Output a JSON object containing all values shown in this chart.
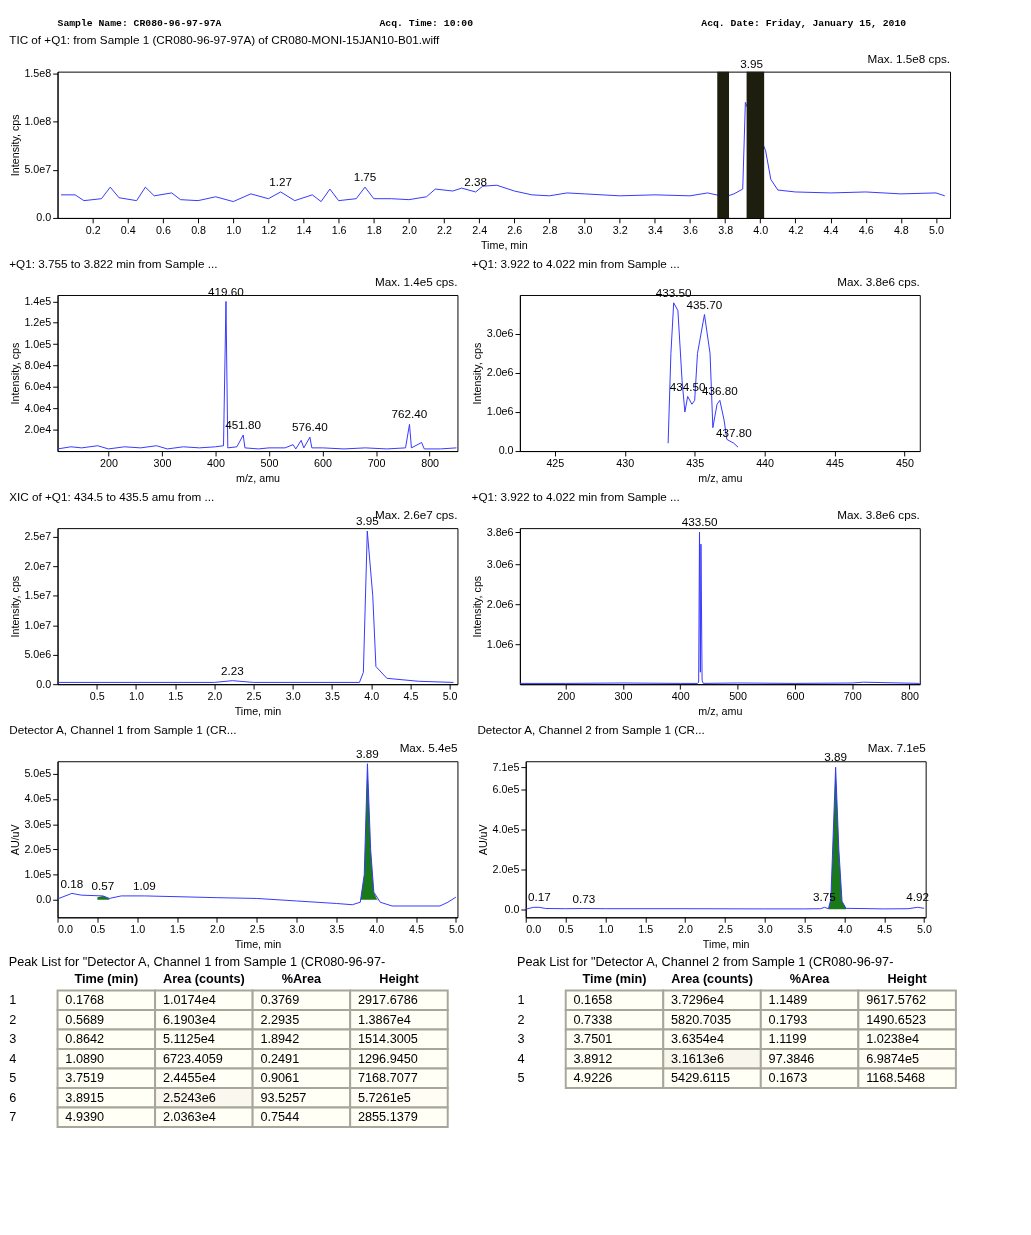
{
  "chart_data": [
    {
      "type": "other",
      "annotations": [
        "Sample Name: CR080-96-97-97A",
        "Acq. Time: 10:00",
        "Acq. Date: Friday, January 15, 2010"
      ]
    },
    {
      "type": "line",
      "title": "TIC of +Q1: from Sample 1 (CR080-96-97-97A) of CR080-MONI-15JAN10-B01.wiff",
      "xlabel": "Time, min",
      "ylabel": "Intensity, cps",
      "xlim": [
        0,
        5.08
      ],
      "ylim": [
        0,
        152000000
      ],
      "xticks": [
        0.2,
        0.4,
        0.6,
        0.8,
        {
          "value": 1,
          "label": "1.0"
        },
        1.2,
        1.4,
        1.6,
        1.8,
        {
          "value": 2,
          "label": "2.0"
        },
        2.2,
        2.4,
        2.6,
        2.8,
        {
          "value": 3,
          "label": "3.0"
        },
        3.2,
        3.4,
        3.6,
        3.8,
        {
          "value": 4,
          "label": "4.0"
        },
        4.2,
        4.4,
        4.6,
        4.8,
        {
          "value": 5,
          "label": "5.0"
        }
      ],
      "yticks": [
        {
          "value": 0,
          "label": "0.0"
        },
        {
          "value": 50000000,
          "label": "5.0e7"
        },
        {
          "value": 100000000,
          "label": "1.0e8"
        },
        {
          "value": 150000000,
          "label": "1.5e8"
        }
      ],
      "series": [
        {
          "color": "#3333ff",
          "x": [
            0.02,
            0.1,
            0.15,
            0.25,
            0.3,
            0.35,
            0.45,
            0.5,
            0.55,
            0.65,
            0.7,
            0.8,
            0.9,
            1.0,
            1.1,
            1.2,
            1.27,
            1.35,
            1.45,
            1.5,
            1.55,
            1.6,
            1.7,
            1.75,
            1.8,
            1.9,
            2.0,
            2.1,
            2.15,
            2.25,
            2.3,
            2.38,
            2.42,
            2.5,
            2.6,
            2.7,
            2.8,
            2.9,
            3.0,
            3.2,
            3.4,
            3.6,
            3.7,
            3.8,
            3.85,
            3.9,
            3.915,
            4.03,
            4.06,
            4.1,
            4.2,
            4.4,
            4.6,
            4.8,
            5.0,
            5.05
          ],
          "values": [
            24000000,
            24000000,
            18000000,
            20000000,
            32000000,
            21000000,
            18000000,
            32000000,
            23000000,
            26000000,
            19000000,
            18000000,
            22000000,
            17000000,
            25000000,
            20000000,
            27000000,
            18000000,
            24000000,
            17000000,
            30000000,
            18000000,
            20000000,
            32000000,
            20000000,
            20000000,
            19000000,
            22000000,
            30000000,
            28000000,
            31000000,
            27000000,
            33000000,
            34000000,
            28000000,
            24000000,
            23000000,
            26000000,
            25000000,
            23000000,
            24000000,
            23000000,
            26000000,
            22000000,
            25000000,
            30000000,
            120000000,
            70000000,
            40000000,
            29000000,
            27000000,
            26000000,
            27000000,
            25000000,
            26000000,
            23000000
          ]
        }
      ],
      "bands": [
        {
          "axis": "x",
          "from": 3.755,
          "to": 3.822,
          "color": "#1e1e0f"
        },
        {
          "axis": "x",
          "from": 3.922,
          "to": 4.022,
          "color": "#1e1e0f"
        }
      ],
      "annotations": [
        "Max. 1.5e8 cps.",
        {
          "text": "1.27",
          "x": 1.27,
          "y": 27000000
        },
        {
          "text": "1.75",
          "x": 1.75,
          "y": 32000000
        },
        {
          "text": "2.38",
          "x": 2.38,
          "y": 27000000
        },
        {
          "text": "3.95",
          "x": 3.95,
          "y": 150000000
        }
      ]
    },
    {
      "type": "line",
      "title": "+Q1: 3.755 to 3.822 min from Sample ...",
      "xlabel": "m/z, amu",
      "ylabel": "Intensity, cps",
      "xlim": [
        105,
        852
      ],
      "ylim": [
        0,
        146000
      ],
      "xticks": [
        200,
        300,
        400,
        500,
        600,
        700,
        800
      ],
      "yticks": [
        {
          "value": 20000,
          "label": "2.0e4"
        },
        {
          "value": 40000,
          "label": "4.0e4"
        },
        {
          "value": 60000,
          "label": "6.0e4"
        },
        {
          "value": 80000,
          "label": "8.0e4"
        },
        {
          "value": 100000,
          "label": "1.0e5"
        },
        {
          "value": 120000,
          "label": "1.2e5"
        },
        {
          "value": 140000,
          "label": "1.4e5"
        }
      ],
      "series": [
        {
          "color": "#3333ff",
          "x": [
            105,
            130,
            150,
            180,
            200,
            230,
            260,
            290,
            310,
            340,
            370,
            400,
            415,
            419.6,
            423,
            440,
            451.8,
            455,
            480,
            500,
            530,
            545,
            550,
            560,
            565,
            576.4,
            580,
            600,
            640,
            680,
            720,
            755,
            762.4,
            766,
            785,
            790,
            820,
            850
          ],
          "values": [
            2000,
            4000,
            3000,
            5000,
            2000,
            4000,
            3000,
            5000,
            2000,
            4000,
            3000,
            4000,
            5000,
            140000,
            3000,
            4000,
            15000,
            3000,
            2000,
            3000,
            3000,
            6000,
            2000,
            10000,
            3000,
            13000,
            3000,
            3000,
            2000,
            3000,
            2000,
            3000,
            25000,
            3000,
            8000,
            2000,
            2000,
            3000
          ]
        }
      ],
      "annotations": [
        "Max. 1.4e5 cps.",
        {
          "text": "419.60",
          "x": 419.6,
          "y": 140000
        },
        {
          "text": "451.80",
          "x": 451.8,
          "y": 15000
        },
        {
          "text": "576.40",
          "x": 576.4,
          "y": 13000
        },
        {
          "text": "762.40",
          "x": 762.4,
          "y": 25000
        }
      ]
    },
    {
      "type": "line",
      "title": "+Q1: 3.922 to 4.022 min from Sample ...",
      "xlabel": "m/z, amu",
      "ylabel": "Intensity, cps",
      "xlim": [
        422.5,
        451.1
      ],
      "ylim": [
        0,
        4000000
      ],
      "xticks": [
        425,
        430,
        435,
        440,
        445,
        450
      ],
      "yticks": [
        {
          "value": 0,
          "label": "0.0"
        },
        {
          "value": 1000000,
          "label": "1.0e6"
        },
        {
          "value": 2000000,
          "label": "2.0e6"
        },
        {
          "value": 3000000,
          "label": "3.0e6"
        }
      ],
      "series": [
        {
          "color": "#3333ff",
          "x": [
            433.1,
            433.3,
            433.5,
            433.8,
            434.1,
            434.3,
            434.5,
            434.8,
            435.0,
            435.2,
            435.7,
            436.1,
            436.3,
            436.6,
            436.8,
            437.1,
            437.3,
            437.8,
            438.1
          ],
          "values": [
            200000,
            2500000,
            3800000,
            3600000,
            1800000,
            1000000,
            1400000,
            1200000,
            1300000,
            2500000,
            3500000,
            2500000,
            600000,
            1200000,
            1300000,
            800000,
            300000,
            200000,
            100000
          ]
        }
      ],
      "annotations": [
        "Max. 3.8e6 cps.",
        {
          "text": "433.50",
          "x": 433.5,
          "y": 3800000
        },
        {
          "text": "435.70",
          "x": 435.7,
          "y": 3500000
        },
        {
          "text": "434.50",
          "x": 434.5,
          "y": 1400000
        },
        {
          "text": "436.80",
          "x": 436.8,
          "y": 1300000
        },
        {
          "text": "437.80",
          "x": 437.8,
          "y": 200000
        }
      ]
    },
    {
      "type": "line",
      "title": "XIC of +Q1: 434.5 to 435.5 amu from ...",
      "xlabel": "Time, min",
      "ylabel": "Intensity, cps",
      "xlim": [
        0,
        5.1
      ],
      "ylim": [
        0,
        26500000
      ],
      "xticks": [
        0.5,
        {
          "value": 1,
          "label": "1.0"
        },
        1.5,
        {
          "value": 2,
          "label": "2.0"
        },
        2.5,
        {
          "value": 3,
          "label": "3.0"
        },
        3.5,
        {
          "value": 4,
          "label": "4.0"
        },
        4.5,
        {
          "value": 5,
          "label": "5.0"
        }
      ],
      "yticks": [
        {
          "value": 0,
          "label": "0.0"
        },
        {
          "value": 5000000,
          "label": "5.0e6"
        },
        {
          "value": 10000000,
          "label": "1.0e7"
        },
        {
          "value": 15000000,
          "label": "1.5e7"
        },
        {
          "value": 20000000,
          "label": "2.0e7"
        },
        {
          "value": 25000000,
          "label": "2.5e7"
        }
      ],
      "series": [
        {
          "color": "#3333ff",
          "x": [
            0,
            1.0,
            2.0,
            2.23,
            2.5,
            3.5,
            3.85,
            3.9,
            3.95,
            4.02,
            4.06,
            4.2,
            4.6,
            5.05
          ],
          "values": [
            300000,
            300000,
            300000,
            600000,
            300000,
            300000,
            300000,
            2000000,
            26000000,
            15000000,
            3000000,
            1000000,
            500000,
            300000
          ]
        }
      ],
      "annotations": [
        "Max. 2.6e7 cps.",
        {
          "text": "3.95",
          "x": 3.95,
          "y": 26000000
        },
        {
          "text": "2.23",
          "x": 2.23,
          "y": 600000
        }
      ]
    },
    {
      "type": "line",
      "title": "+Q1: 3.922 to 4.022 min from Sample ...",
      "xlabel": "m/z, amu",
      "ylabel": "Intensity, cps",
      "xlim": [
        120,
        818
      ],
      "ylim": [
        0,
        3900000
      ],
      "xticks": [
        200,
        300,
        400,
        500,
        600,
        700,
        800
      ],
      "yticks": [
        {
          "value": 1000000,
          "label": "1.0e6"
        },
        {
          "value": 2000000,
          "label": "2.0e6"
        },
        {
          "value": 3000000,
          "label": "3.0e6"
        },
        {
          "value": 3800000,
          "label": "3.8e6"
        }
      ],
      "series": [
        {
          "color": "#3333ff",
          "x": [
            120,
            200,
            300,
            400,
            430,
            432,
            433.5,
            435,
            436,
            438,
            440,
            500,
            600,
            700,
            720,
            818
          ],
          "values": [
            20000,
            20000,
            30000,
            20000,
            20000,
            50000,
            3800000,
            300000,
            3500000,
            100000,
            20000,
            30000,
            20000,
            30000,
            50000,
            20000
          ]
        }
      ],
      "annotations": [
        "Max. 3.8e6 cps.",
        {
          "text": "433.50",
          "x": 433.5,
          "y": 3800000
        }
      ]
    },
    {
      "type": "line",
      "title": "Detector A, Channel 1 from Sample 1 (CR...",
      "xlabel": "Time, min",
      "ylabel": "AU/uV",
      "xlim": [
        0,
        5.02
      ],
      "ylim": [
        -70000,
        550000
      ],
      "xticks": [
        {
          "value": 0,
          "label": "0.0"
        },
        0.5,
        {
          "value": 1,
          "label": "1.0"
        },
        1.5,
        {
          "value": 2,
          "label": "2.0"
        },
        2.5,
        {
          "value": 3,
          "label": "3.0"
        },
        3.5,
        {
          "value": 4,
          "label": "4.0"
        },
        4.5,
        {
          "value": 5,
          "label": "5.0"
        }
      ],
      "yticks": [
        {
          "value": 0,
          "label": "0.0"
        },
        {
          "value": 100000,
          "label": "1.0e5"
        },
        {
          "value": 200000,
          "label": "2.0e5"
        },
        {
          "value": 300000,
          "label": "3.0e5"
        },
        {
          "value": 400000,
          "label": "4.0e5"
        },
        {
          "value": 500000,
          "label": "5.0e5"
        }
      ],
      "series": [
        {
          "type": "area",
          "color": "#1a7a1a",
          "x": [
            0.5,
            0.57,
            0.65
          ],
          "values": [
            10000,
            15000,
            5000
          ]
        },
        {
          "type": "area",
          "color": "#1a7a1a",
          "x": [
            3.8,
            3.85,
            3.89,
            3.93,
            3.97,
            4.02
          ],
          "values": [
            -10000,
            100000,
            540000,
            200000,
            30000,
            -5000
          ]
        },
        {
          "color": "#3333ff",
          "x": [
            0,
            0.18,
            0.3,
            0.57,
            0.65,
            0.8,
            1.09,
            1.5,
            2.0,
            2.5,
            3.0,
            3.5,
            3.7,
            3.8,
            3.85,
            3.89,
            3.93,
            3.97,
            4.05,
            4.2,
            4.8,
            4.9,
            5.0
          ],
          "values": [
            3000,
            25000,
            18000,
            15000,
            5000,
            15000,
            15000,
            12000,
            8000,
            5000,
            -5000,
            -15000,
            -20000,
            -10000,
            100000,
            540000,
            200000,
            30000,
            -10000,
            -25000,
            -25000,
            -10000,
            10000
          ]
        }
      ],
      "annotations": [
        "Max. 5.4e5",
        {
          "text": "3.89",
          "x": 3.89,
          "y": 540000
        },
        {
          "text": "0.18",
          "x": 0.18,
          "y": 25000
        },
        {
          "text": "0.57",
          "x": 0.57,
          "y": 15000
        },
        {
          "text": "1.09",
          "x": 1.09,
          "y": 15000
        }
      ]
    },
    {
      "type": "line",
      "title": "Detector A, Channel 2 from Sample 1 (CR...",
      "xlabel": "Time, min",
      "ylabel": "AU/uV",
      "xlim": [
        0,
        5.02
      ],
      "ylim": [
        -40000,
        740000
      ],
      "xticks": [
        {
          "value": 0,
          "label": "0.0"
        },
        0.5,
        {
          "value": 1,
          "label": "1.0"
        },
        1.5,
        {
          "value": 2,
          "label": "2.0"
        },
        2.5,
        {
          "value": 3,
          "label": "3.0"
        },
        3.5,
        {
          "value": 4,
          "label": "4.0"
        },
        4.5,
        {
          "value": 5,
          "label": "5.0"
        }
      ],
      "yticks": [
        {
          "value": 0,
          "label": "0.0"
        },
        {
          "value": 200000,
          "label": "2.0e5"
        },
        {
          "value": 400000,
          "label": "4.0e5"
        },
        {
          "value": 600000,
          "label": "6.0e5"
        },
        {
          "value": 710000,
          "label": "7.1e5"
        }
      ],
      "series": [
        {
          "type": "area",
          "color": "#1a7a1a",
          "x": [
            3.8,
            3.83,
            3.89,
            3.93,
            3.97,
            4.02
          ],
          "values": [
            3000,
            50000,
            710000,
            300000,
            40000,
            5000
          ]
        },
        {
          "color": "#3333ff",
          "x": [
            0,
            0.1,
            0.17,
            0.25,
            0.5,
            0.73,
            1.0,
            2.0,
            3.0,
            3.5,
            3.7,
            3.75,
            3.8,
            3.83,
            3.89,
            3.93,
            3.97,
            4.02,
            4.5,
            4.8,
            4.92,
            5.0
          ],
          "values": [
            1000,
            10000,
            10000,
            4000,
            3000,
            4000,
            3000,
            3000,
            2000,
            2000,
            3000,
            10000,
            3000,
            50000,
            710000,
            300000,
            40000,
            5000,
            2000,
            3000,
            10000,
            5000
          ]
        }
      ],
      "annotations": [
        "Max. 7.1e5",
        {
          "text": "3.89",
          "x": 3.89,
          "y": 710000
        },
        {
          "text": "0.17",
          "x": 0.17,
          "y": 10000
        },
        {
          "text": "0.73",
          "x": 0.73,
          "y": 4000
        },
        {
          "text": "3.75",
          "x": 3.75,
          "y": 10000
        },
        {
          "text": "4.92",
          "x": 4.92,
          "y": 10000
        }
      ]
    },
    {
      "type": "heatmap",
      "title": "Peak List for \"Detector A, Channel 1 from Sample 1 (CR080-96-97-",
      "categories": [
        "Time (min)",
        "Area (counts)",
        "%Area",
        "Height"
      ],
      "y_categories": [
        "1",
        "2",
        "3",
        "4",
        "5",
        "6",
        "7"
      ],
      "cells": [
        [
          0.1768,
          10174,
          0.3769,
          2917.6786
        ],
        [
          0.5689,
          61903,
          2.2935,
          13867
        ],
        [
          0.8642,
          51125,
          1.8942,
          1514.3005
        ],
        [
          1.089,
          6723.4059,
          0.2491,
          1296.945
        ],
        [
          3.7519,
          24455,
          0.9061,
          7168.7077
        ],
        [
          3.8915,
          2524300,
          93.5257,
          572610
        ],
        [
          4.939,
          20363,
          0.7544,
          2855.1379
        ]
      ],
      "cell_labels": [
        [
          "0.1768",
          "1.0174e4",
          "0.3769",
          "2917.6786"
        ],
        [
          "0.5689",
          "6.1903e4",
          "2.2935",
          "1.3867e4"
        ],
        [
          "0.8642",
          "5.1125e4",
          "1.8942",
          "1514.3005"
        ],
        [
          "1.0890",
          "6723.4059",
          "0.2491",
          "1296.9450"
        ],
        [
          "3.7519",
          "2.4455e4",
          "0.9061",
          "7168.7077"
        ],
        [
          "3.8915",
          "2.5243e6",
          "93.5257",
          "5.7261e5"
        ],
        [
          "4.9390",
          "2.0363e4",
          "0.7544",
          "2855.1379"
        ]
      ]
    },
    {
      "type": "heatmap",
      "title": "Peak List for \"Detector A, Channel 2 from Sample 1 (CR080-96-97-",
      "categories": [
        "Time (min)",
        "Area (counts)",
        "%Area",
        "Height"
      ],
      "y_categories": [
        "1",
        "2",
        "3",
        "4",
        "5"
      ],
      "cells": [
        [
          0.1658,
          37296,
          1.1489,
          9617.5762
        ],
        [
          0.7338,
          5820.7035,
          0.1793,
          1490.6523
        ],
        [
          3.7501,
          36354,
          1.1199,
          10238
        ],
        [
          3.8912,
          3161300,
          97.3846,
          698740
        ],
        [
          4.9226,
          5429.6115,
          0.1673,
          1168.5468
        ]
      ],
      "cell_labels": [
        [
          "0.1658",
          "3.7296e4",
          "1.1489",
          "9617.5762"
        ],
        [
          "0.7338",
          "5820.7035",
          "0.1793",
          "1490.6523"
        ],
        [
          "3.7501",
          "3.6354e4",
          "1.1199",
          "1.0238e4"
        ],
        [
          "3.8912",
          "3.1613e6",
          "97.3846",
          "6.9874e5"
        ],
        [
          "4.9226",
          "5429.6115",
          "0.1673",
          "1168.5468"
        ]
      ]
    }
  ]
}
